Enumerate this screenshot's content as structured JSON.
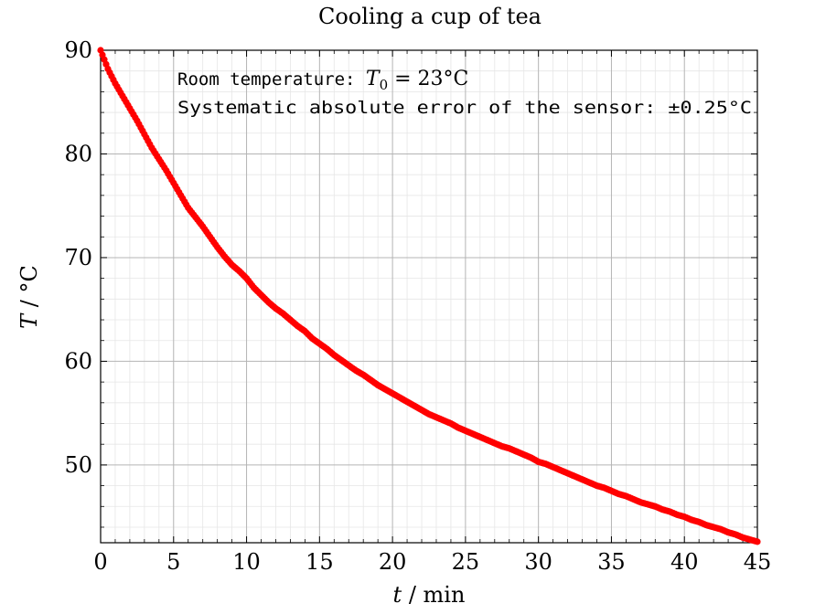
{
  "chart_data": {
    "type": "scatter",
    "title": "Cooling a cup of tea",
    "xlabel_var": "t",
    "xlabel_unit": " / min",
    "ylabel_var": "T",
    "ylabel_unit": " / °C",
    "xlim": [
      0,
      45
    ],
    "ylim": [
      42.5,
      90
    ],
    "xticks": [
      0,
      5,
      10,
      15,
      20,
      25,
      30,
      35,
      40,
      45
    ],
    "yticks": [
      50,
      60,
      70,
      80,
      90
    ],
    "grid": true,
    "minor_grid": true,
    "marker_color": "#ff0000",
    "annotations": {
      "line1_prefix": "Room temperature: ",
      "line1_var": "T",
      "line1_sub": "0",
      "line1_suffix": " = 23°C",
      "line2": "Systematic absolute error of the sensor: ±0.25°C"
    },
    "series": [
      {
        "x": [
          0.0,
          0.5,
          1.0,
          1.5,
          2.0,
          2.5,
          3.0,
          3.5,
          4.0,
          4.5,
          5.0,
          5.5,
          6.0,
          6.5,
          7.0,
          7.5,
          8.0,
          8.5,
          9.0,
          9.5,
          10.0,
          10.5,
          11.0,
          11.5,
          12.0,
          12.5,
          13.0,
          13.5,
          14.0,
          14.5,
          15.0,
          15.5,
          16.0,
          16.5,
          17.0,
          17.5,
          18.0,
          18.5,
          19.0,
          19.5,
          20.0,
          20.5,
          21.0,
          21.5,
          22.0,
          22.5,
          23.0,
          23.5,
          24.0,
          24.5,
          25.0,
          25.5,
          26.0,
          26.5,
          27.0,
          27.5,
          28.0,
          28.5,
          29.0,
          29.5,
          30.0,
          30.5,
          31.0,
          31.5,
          32.0,
          32.5,
          33.0,
          33.5,
          34.0,
          34.5,
          35.0,
          35.5,
          36.0,
          36.5,
          37.0,
          37.5,
          38.0,
          38.5,
          39.0,
          39.5,
          40.0,
          40.5,
          41.0,
          41.5,
          42.0,
          42.5,
          43.0,
          43.5,
          44.0,
          44.5,
          45.0
        ],
        "y": [
          90.0,
          88.2,
          86.8,
          85.6,
          84.4,
          83.2,
          81.9,
          80.6,
          79.5,
          78.4,
          77.2,
          76.0,
          74.8,
          73.9,
          73.0,
          72.0,
          71.0,
          70.1,
          69.3,
          68.7,
          68.0,
          67.1,
          66.4,
          65.7,
          65.1,
          64.6,
          64.0,
          63.4,
          62.9,
          62.2,
          61.7,
          61.2,
          60.6,
          60.1,
          59.6,
          59.1,
          58.7,
          58.2,
          57.7,
          57.3,
          56.9,
          56.5,
          56.1,
          55.7,
          55.3,
          54.9,
          54.6,
          54.3,
          54.0,
          53.6,
          53.3,
          53.0,
          52.7,
          52.4,
          52.1,
          51.8,
          51.6,
          51.3,
          51.0,
          50.7,
          50.3,
          50.1,
          49.8,
          49.5,
          49.2,
          48.9,
          48.6,
          48.3,
          48.0,
          47.8,
          47.5,
          47.2,
          47.0,
          46.7,
          46.4,
          46.2,
          46.0,
          45.7,
          45.5,
          45.2,
          45.0,
          44.7,
          44.5,
          44.2,
          44.0,
          43.8,
          43.5,
          43.3,
          43.0,
          42.8,
          42.6
        ]
      }
    ]
  }
}
